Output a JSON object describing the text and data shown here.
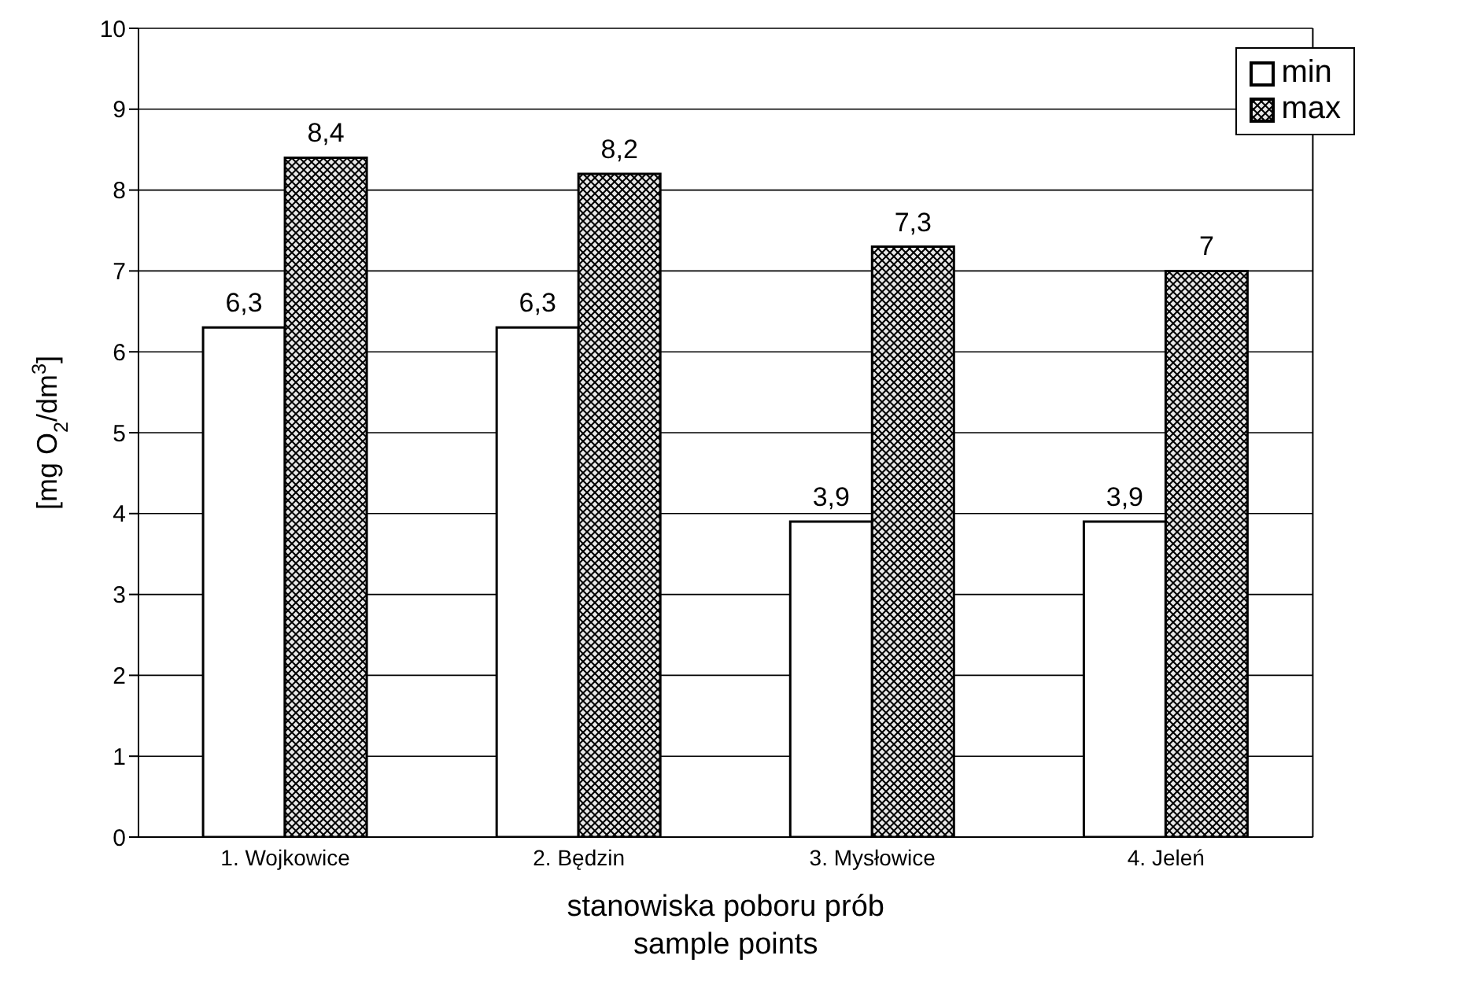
{
  "chart_data": {
    "type": "bar",
    "xlabel": "stanowiska poboru prób\nsample points",
    "ylabel": "[mg O$_{2}$/dm$^{3}$]",
    "categories": [
      "1. Wojkowice",
      "2. Będzin",
      "3. Mysłowice",
      "4. Jeleń"
    ],
    "series": [
      {
        "name": "min",
        "color": "#ffffff",
        "values": [
          6.3,
          6.3,
          3.9,
          3.9
        ],
        "value_labels": [
          "6,3",
          "6,3",
          "3,9",
          "3,9"
        ]
      },
      {
        "name": "max",
        "color": "#000000",
        "values": [
          8.4,
          8.2,
          7.3,
          7
        ],
        "value_labels": [
          "8,4",
          "8,2",
          "7,3",
          "7"
        ]
      }
    ],
    "ylim": [
      0,
      10
    ],
    "yticks": [
      0,
      1,
      2,
      3,
      4,
      5,
      6,
      7,
      8,
      9,
      10
    ],
    "grid": "y",
    "legend": "top right"
  }
}
